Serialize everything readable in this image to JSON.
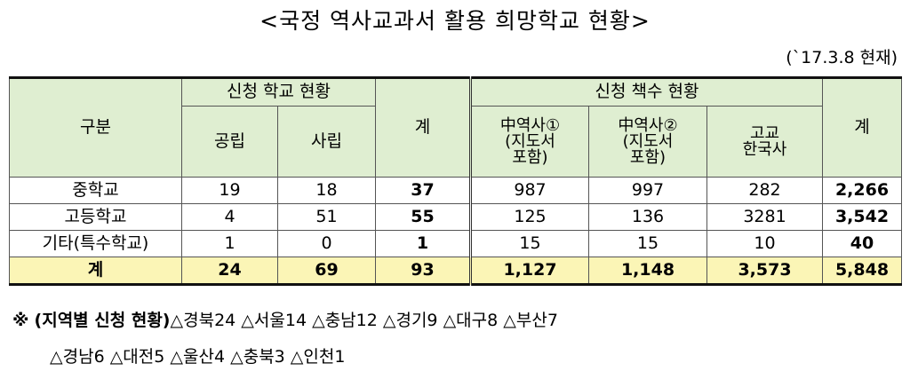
{
  "title": "<국정 역사교과서 활용 희망학교 현황>",
  "date": "(`17.3.8 현재)",
  "table": {
    "header": {
      "category": "구분",
      "school_group": "신청 학교 현황",
      "public": "공립",
      "private": "사립",
      "school_total": "계",
      "book_group": "신청 책수 현황",
      "book1": [
        "中역사①",
        "(지도서",
        "포함)"
      ],
      "book2": [
        "中역사②",
        "(지도서",
        "포함)"
      ],
      "book3": [
        "고교",
        "한국사"
      ],
      "book_total": "계"
    },
    "rows": [
      {
        "label": "중학교",
        "public": "19",
        "private": "18",
        "sum": "37",
        "b1": "987",
        "b2": "997",
        "b3": "282",
        "btotal": "2,266"
      },
      {
        "label": "고등학교",
        "public": "4",
        "private": "51",
        "sum": "55",
        "b1": "125",
        "b2": "136",
        "b3": "3281",
        "btotal": "3,542"
      },
      {
        "label": "기타(특수학교)",
        "public": "1",
        "private": "0",
        "sum": "1",
        "b1": "15",
        "b2": "15",
        "b3": "10",
        "btotal": "40"
      },
      {
        "label": "계",
        "public": "24",
        "private": "69",
        "sum": "93",
        "b1": "1,127",
        "b2": "1,148",
        "b3": "3,573",
        "btotal": "5,848"
      }
    ]
  },
  "note": {
    "mark": "※",
    "heading": "(지역별 신청 현황)",
    "line1": "△경북24 △서울14 △충남12 △경기9 △대구8 △부산7",
    "line2": "△경남6 △대전5 △울산4 △충북3 △인천1"
  }
}
